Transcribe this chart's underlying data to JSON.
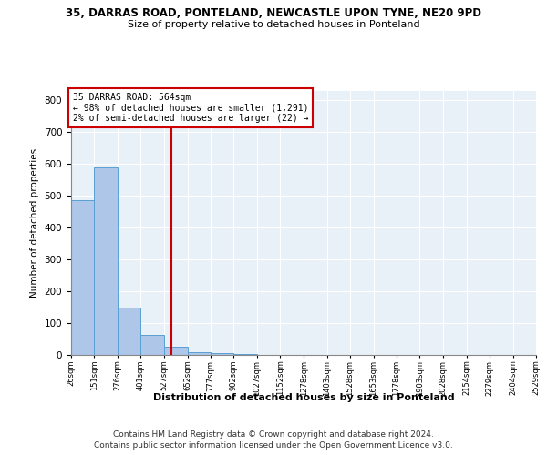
{
  "title1": "35, DARRAS ROAD, PONTELAND, NEWCASTLE UPON TYNE, NE20 9PD",
  "title2": "Size of property relative to detached houses in Ponteland",
  "xlabel": "Distribution of detached houses by size in Ponteland",
  "ylabel": "Number of detached properties",
  "bar_heights": [
    487,
    590,
    150,
    63,
    27,
    10,
    5,
    2,
    1,
    1,
    0,
    1,
    0,
    0,
    0,
    0,
    0,
    0,
    0,
    0
  ],
  "bin_edges": [
    26,
    151,
    276,
    401,
    527,
    652,
    777,
    902,
    1027,
    1152,
    1278,
    1403,
    1528,
    1653,
    1778,
    1903,
    2028,
    2154,
    2279,
    2404,
    2529
  ],
  "bar_color": "#aec6e8",
  "bar_edge_color": "#5a9fd4",
  "background_color": "#e8f0f8",
  "grid_color": "#ffffff",
  "vline_x": 564,
  "vline_color": "#cc0000",
  "annotation_text": "35 DARRAS ROAD: 564sqm\n← 98% of detached houses are smaller (1,291)\n2% of semi-detached houses are larger (22) →",
  "annotation_box_color": "#ffffff",
  "annotation_box_edge": "#cc0000",
  "ylim": [
    0,
    830
  ],
  "yticks": [
    0,
    100,
    200,
    300,
    400,
    500,
    600,
    700,
    800
  ],
  "footer1": "Contains HM Land Registry data © Crown copyright and database right 2024.",
  "footer2": "Contains public sector information licensed under the Open Government Licence v3.0."
}
